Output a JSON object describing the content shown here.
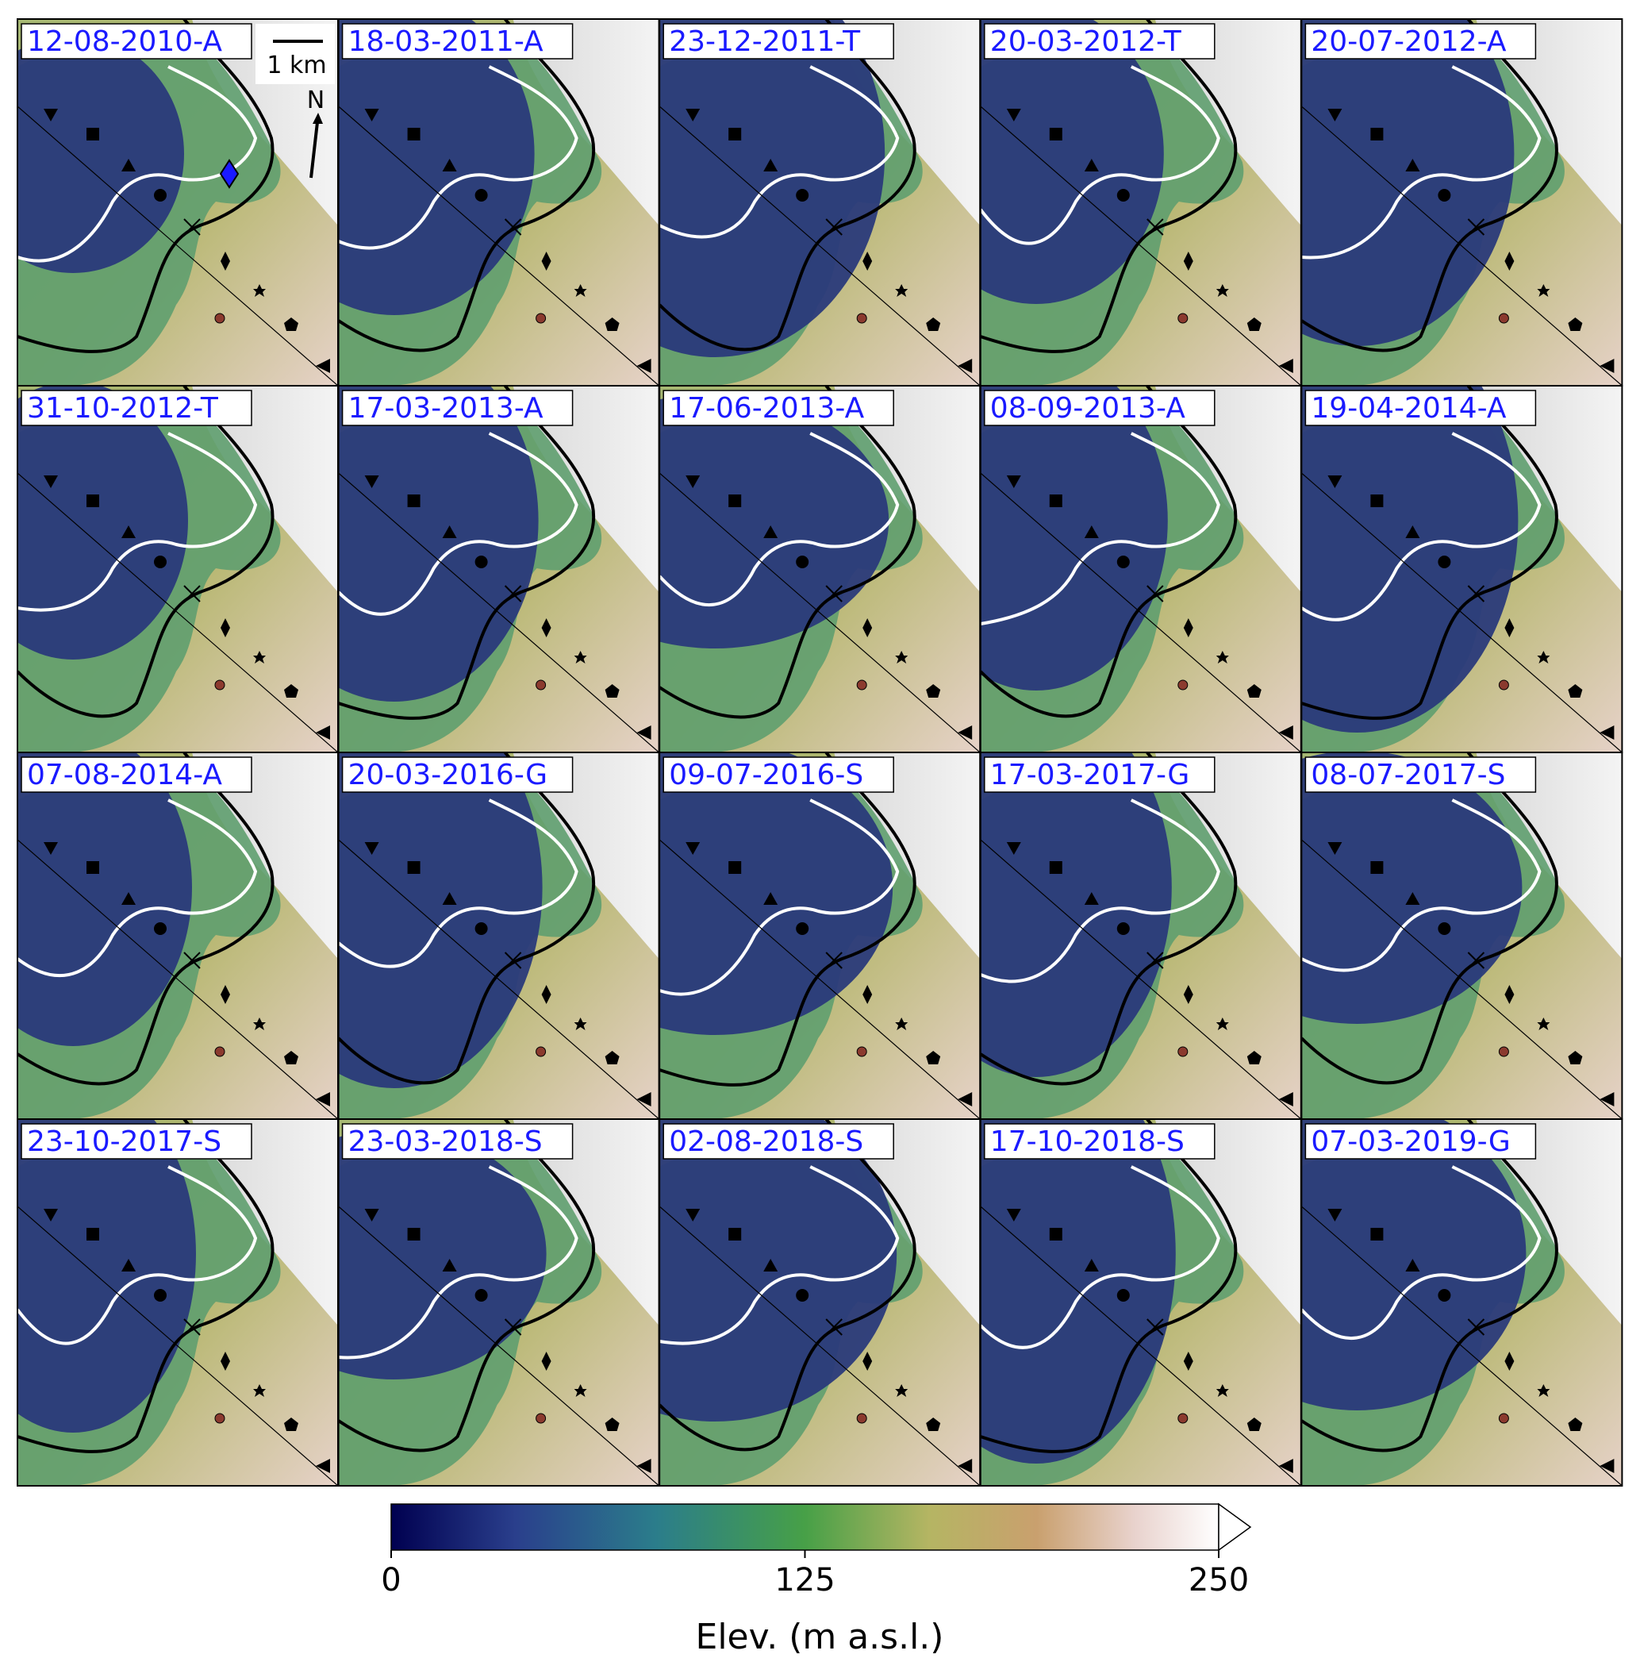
{
  "panels": [
    {
      "date": "12-08-2010-A"
    },
    {
      "date": "18-03-2011-A"
    },
    {
      "date": "23-12-2011-T"
    },
    {
      "date": "20-03-2012-T"
    },
    {
      "date": "20-07-2012-A"
    },
    {
      "date": "31-10-2012-T"
    },
    {
      "date": "17-03-2013-A"
    },
    {
      "date": "17-06-2013-A"
    },
    {
      "date": "08-09-2013-A"
    },
    {
      "date": "19-04-2014-A"
    },
    {
      "date": "07-08-2014-A"
    },
    {
      "date": "20-03-2016-G"
    },
    {
      "date": "09-07-2016-S"
    },
    {
      "date": "17-03-2017-G"
    },
    {
      "date": "08-07-2017-S"
    },
    {
      "date": "23-10-2017-S"
    },
    {
      "date": "23-03-2018-S"
    },
    {
      "date": "02-08-2018-S"
    },
    {
      "date": "17-10-2018-S"
    },
    {
      "date": "07-03-2019-G"
    }
  ],
  "scalebar": {
    "label": "1 km"
  },
  "north_arrow": {
    "label": "N"
  },
  "colorbar": {
    "label": "Elev. (m a.s.l.)",
    "ticks": [
      "0",
      "125",
      "250"
    ],
    "range": [
      0,
      250
    ],
    "colors": [
      "#0a0a5c",
      "#2a4a8a",
      "#2e7e8a",
      "#4aa04a",
      "#b8b860",
      "#c8a070",
      "#e8d0c8",
      "#ffffff"
    ]
  },
  "colors": {
    "label_text": "#1a1aff",
    "contour_white": "#ffffff",
    "contour_black": "#000000",
    "nodata": "#404040"
  }
}
